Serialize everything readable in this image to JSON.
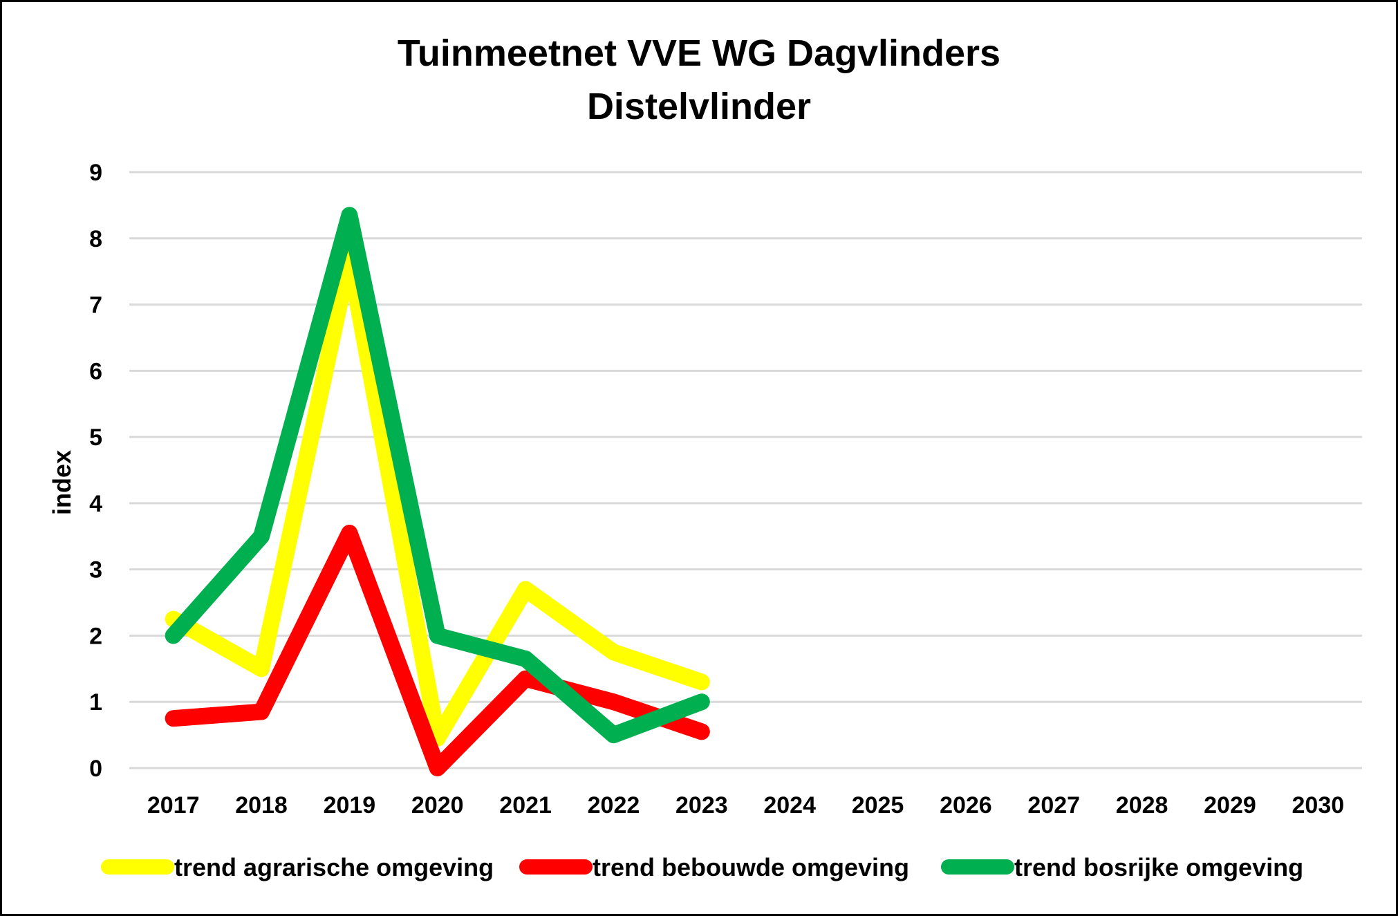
{
  "chart_data": {
    "type": "line",
    "title": [
      "Tuinmeetnet VVE WG Dagvlinders",
      "Distelvlinder"
    ],
    "ylabel": "index",
    "xlabel": "",
    "categories": [
      "2017",
      "2018",
      "2019",
      "2020",
      "2021",
      "2022",
      "2023",
      "2024",
      "2025",
      "2026",
      "2027",
      "2028",
      "2029",
      "2030"
    ],
    "yticks": [
      0,
      1,
      2,
      3,
      4,
      5,
      6,
      7,
      8,
      9
    ],
    "ylim": [
      0,
      9
    ],
    "grid": true,
    "legend_position": "bottom",
    "series": [
      {
        "name": "trend agrarische omgeving",
        "color": "#FFFF00",
        "values": [
          2.25,
          1.5,
          7.7,
          0.45,
          2.7,
          1.75,
          1.3,
          null,
          null,
          null,
          null,
          null,
          null,
          null
        ]
      },
      {
        "name": "trend bebouwde omgeving",
        "color": "#FF0000",
        "values": [
          0.75,
          0.85,
          3.55,
          0.0,
          1.35,
          1.0,
          0.55,
          null,
          null,
          null,
          null,
          null,
          null,
          null
        ]
      },
      {
        "name": "trend bosrijke omgeving",
        "color": "#00B050",
        "values": [
          2.0,
          3.5,
          8.35,
          2.0,
          1.65,
          0.5,
          1.0,
          null,
          null,
          null,
          null,
          null,
          null,
          null
        ]
      }
    ]
  }
}
